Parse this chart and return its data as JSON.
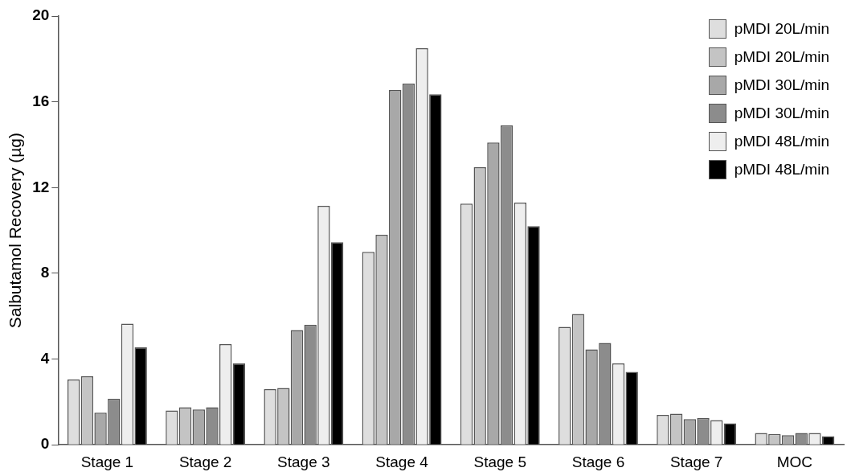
{
  "chart_data": {
    "type": "bar",
    "ylabel": "Salbutamol Recovery (µg)",
    "categories": [
      "Stage 1",
      "Stage 2",
      "Stage 3",
      "Stage 4",
      "Stage 5",
      "Stage 6",
      "Stage 7",
      "MOC"
    ],
    "series": [
      {
        "name": "pMDI 20L/min",
        "color": "#dedede",
        "values": [
          3.05,
          1.6,
          2.6,
          9.0,
          11.25,
          5.5,
          1.4,
          0.55
        ]
      },
      {
        "name": "pMDI 20L/min",
        "color": "#c4c4c4",
        "values": [
          3.2,
          1.75,
          2.65,
          9.8,
          12.95,
          6.1,
          1.45,
          0.5
        ]
      },
      {
        "name": "pMDI 30L/min",
        "color": "#a8a8a8",
        "values": [
          1.5,
          1.65,
          5.35,
          16.55,
          14.1,
          4.45,
          1.2,
          0.45
        ]
      },
      {
        "name": "pMDI 30L/min",
        "color": "#8c8c8c",
        "values": [
          2.15,
          1.75,
          5.6,
          16.85,
          14.9,
          4.75,
          1.25,
          0.55
        ]
      },
      {
        "name": "pMDI 48L/min",
        "color": "#eeeeee",
        "values": [
          5.65,
          4.7,
          11.15,
          18.5,
          11.3,
          3.8,
          1.15,
          0.55
        ]
      },
      {
        "name": "pMDI 48L/min",
        "color": "#000000",
        "values": [
          4.55,
          3.8,
          9.45,
          16.35,
          10.2,
          3.4,
          1.0,
          0.4
        ]
      }
    ],
    "ylim": [
      0,
      20
    ],
    "yticks": [
      0,
      4,
      8,
      12,
      16,
      20
    ],
    "grid": false,
    "legend": "top right"
  }
}
